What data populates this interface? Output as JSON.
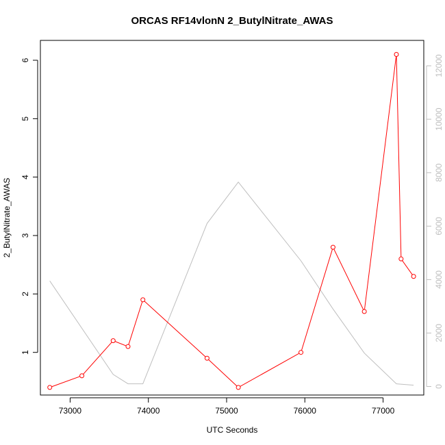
{
  "chart_data": {
    "type": "line",
    "title": "ORCAS RF14vlonN 2_ButylNitrate_AWAS",
    "xlabel": "UTC Seconds",
    "ylabel": "2_ButylNitrate_AWAS",
    "ylabel_right": "",
    "xlim": [
      72620,
      77520
    ],
    "ylim": [
      0.27,
      6.34
    ],
    "ylim_right": [
      -320,
      12950
    ],
    "x_ticks": [
      73000,
      74000,
      75000,
      76000,
      77000
    ],
    "y_ticks": [
      1,
      2,
      3,
      4,
      5,
      6
    ],
    "y_ticks_right": [
      0,
      2000,
      4000,
      6000,
      8000,
      10000,
      12000
    ],
    "grid": false,
    "colors": {
      "primary": "#ff0000",
      "secondary": "#bebebe",
      "axis": "#000000"
    },
    "series": [
      {
        "axis": "left",
        "color": "#ff0000",
        "marker": "open-circle",
        "points": [
          [
            72740,
            0.4
          ],
          [
            73150,
            0.6
          ],
          [
            73550,
            1.2
          ],
          [
            73740,
            1.1
          ],
          [
            73930,
            1.9
          ],
          [
            74750,
            0.9
          ],
          [
            75150,
            0.4
          ],
          [
            75950,
            1.0
          ],
          [
            76360,
            2.8
          ],
          [
            76760,
            1.7
          ],
          [
            77170,
            6.1
          ],
          [
            77230,
            2.6
          ],
          [
            77390,
            2.3
          ]
        ]
      },
      {
        "axis": "right",
        "color": "#bebebe",
        "marker": "none",
        "points": [
          [
            72740,
            3950
          ],
          [
            73550,
            450
          ],
          [
            73740,
            100
          ],
          [
            73930,
            100
          ],
          [
            74750,
            6100
          ],
          [
            75150,
            7650
          ],
          [
            75950,
            4700
          ],
          [
            76360,
            2900
          ],
          [
            76760,
            1250
          ],
          [
            77170,
            100
          ],
          [
            77390,
            50
          ]
        ]
      }
    ]
  }
}
